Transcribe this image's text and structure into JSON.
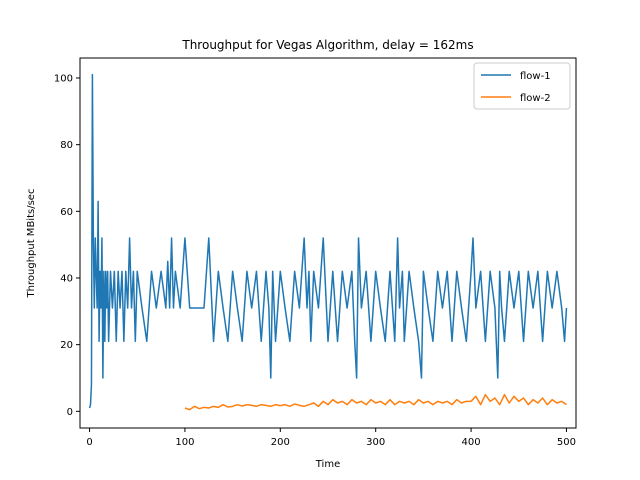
{
  "chart_data": {
    "type": "line",
    "title": "Throughput for Vegas Algorithm, delay = 162ms",
    "xlabel": "Time",
    "ylabel": "Throughput MBits/sec",
    "xlim": [
      -10,
      510
    ],
    "ylim": [
      -5,
      106
    ],
    "xticks": [
      0,
      100,
      200,
      300,
      400,
      500
    ],
    "yticks": [
      0,
      20,
      40,
      60,
      80,
      100
    ],
    "grid": false,
    "legend_position": "top-right",
    "series": [
      {
        "name": "flow-1",
        "color": "#1f77b4",
        "x": [
          0,
          1,
          2,
          3,
          4,
          5,
          6,
          7,
          8,
          9,
          10,
          11,
          12,
          13,
          14,
          15,
          16,
          17,
          18,
          19,
          20,
          22,
          24,
          26,
          28,
          30,
          32,
          34,
          36,
          38,
          40,
          42,
          44,
          46,
          48,
          50,
          55,
          60,
          65,
          70,
          75,
          80,
          82,
          84,
          86,
          88,
          90,
          95,
          100,
          105,
          110,
          115,
          120,
          125,
          130,
          135,
          140,
          145,
          150,
          155,
          160,
          165,
          170,
          175,
          180,
          185,
          188,
          190,
          192,
          195,
          200,
          205,
          210,
          215,
          220,
          225,
          228,
          230,
          232,
          235,
          240,
          245,
          250,
          255,
          260,
          265,
          270,
          275,
          278,
          280,
          282,
          285,
          290,
          295,
          300,
          305,
          310,
          315,
          320,
          323,
          325,
          328,
          330,
          335,
          340,
          345,
          348,
          350,
          355,
          360,
          365,
          370,
          375,
          380,
          385,
          390,
          395,
          400,
          402,
          405,
          410,
          415,
          420,
          425,
          428,
          430,
          432,
          435,
          440,
          445,
          450,
          455,
          460,
          465,
          470,
          475,
          480,
          485,
          490,
          495,
          498,
          500
        ],
        "y": [
          1,
          2,
          8,
          101,
          52,
          31,
          52,
          41,
          31,
          63,
          21,
          42,
          31,
          52,
          10,
          42,
          21,
          42,
          31,
          42,
          21,
          42,
          31,
          42,
          21,
          42,
          31,
          42,
          21,
          42,
          31,
          52,
          31,
          42,
          21,
          42,
          31,
          21,
          42,
          31,
          42,
          31,
          45,
          31,
          52,
          31,
          42,
          31,
          52,
          31,
          31,
          31,
          31,
          52,
          21,
          42,
          31,
          21,
          42,
          31,
          21,
          42,
          31,
          42,
          21,
          42,
          31,
          10,
          42,
          21,
          42,
          31,
          21,
          42,
          31,
          52,
          31,
          42,
          21,
          42,
          31,
          52,
          21,
          42,
          21,
          42,
          31,
          42,
          21,
          10,
          52,
          31,
          42,
          21,
          42,
          31,
          21,
          42,
          21,
          52,
          31,
          42,
          21,
          42,
          31,
          21,
          10,
          42,
          31,
          21,
          42,
          31,
          42,
          21,
          42,
          31,
          21,
          42,
          52,
          31,
          42,
          21,
          42,
          31,
          10,
          42,
          31,
          21,
          42,
          31,
          42,
          21,
          42,
          31,
          42,
          21,
          42,
          31,
          42,
          31,
          21,
          31
        ]
      },
      {
        "name": "flow-2",
        "color": "#ff7f0e",
        "x": [
          100,
          105,
          110,
          115,
          120,
          125,
          130,
          135,
          140,
          145,
          150,
          155,
          160,
          165,
          170,
          175,
          180,
          185,
          190,
          195,
          200,
          205,
          210,
          215,
          220,
          225,
          230,
          235,
          240,
          245,
          250,
          255,
          260,
          265,
          270,
          275,
          280,
          285,
          290,
          295,
          300,
          305,
          310,
          315,
          320,
          325,
          330,
          335,
          340,
          345,
          350,
          355,
          360,
          365,
          370,
          375,
          380,
          385,
          390,
          395,
          400,
          405,
          410,
          415,
          420,
          425,
          430,
          435,
          440,
          445,
          450,
          455,
          460,
          465,
          470,
          475,
          480,
          485,
          490,
          495,
          500
        ],
        "y": [
          1,
          0.5,
          1.5,
          0.8,
          1.2,
          1,
          1.5,
          1.2,
          2,
          1.3,
          1.5,
          2,
          1.6,
          2,
          1.8,
          1.5,
          2,
          1.8,
          1.5,
          2,
          1.7,
          2,
          1.5,
          2.2,
          1.8,
          1.5,
          2,
          2.5,
          1.5,
          3,
          2,
          3.5,
          2.5,
          3,
          2,
          3.5,
          2.5,
          3,
          2,
          3.5,
          2.5,
          3,
          2,
          3.5,
          2,
          3,
          2.5,
          3,
          2,
          3.5,
          2.5,
          3,
          2,
          3,
          2.5,
          3,
          2,
          3.5,
          2.5,
          3,
          3,
          4.5,
          2,
          5,
          3,
          4,
          2,
          5,
          2.5,
          4.5,
          3,
          4,
          2,
          3.5,
          2.5,
          4,
          2,
          3.5,
          2.5,
          3,
          2
        ]
      }
    ]
  }
}
